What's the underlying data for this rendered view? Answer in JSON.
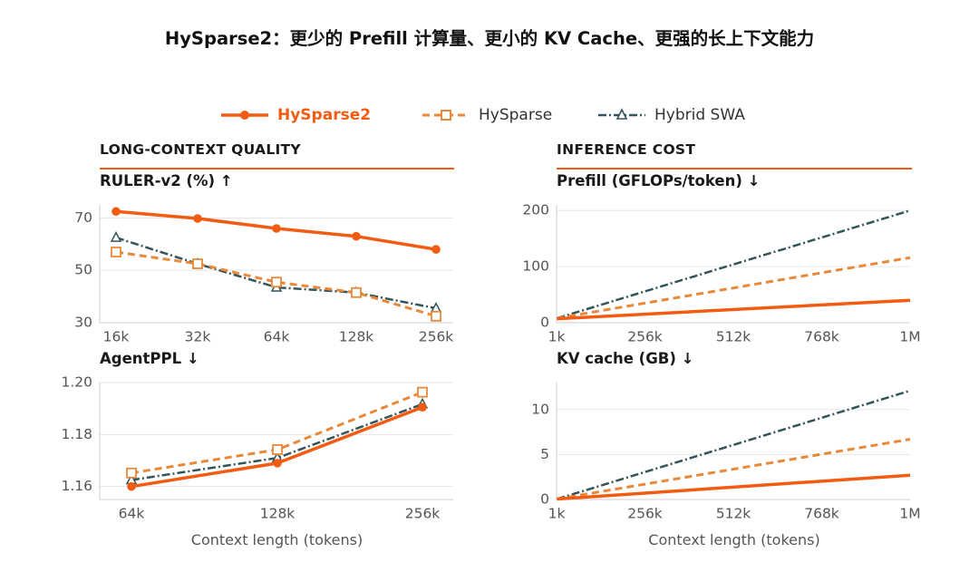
{
  "title": "HySparse2：更少的 Prefill 计算量、更小的 KV Cache、更强的长上下文能力",
  "legend": [
    {
      "name": "HySparse2",
      "color": "#f25c12",
      "style": "solid",
      "marker": "circle"
    },
    {
      "name": "HySparse",
      "color": "#e8893a",
      "style": "dashed",
      "marker": "square"
    },
    {
      "name": "Hybrid SWA",
      "color": "#33545a",
      "style": "dashdot",
      "marker": "triangle"
    }
  ],
  "sections": {
    "left": "LONG-CONTEXT QUALITY",
    "right": "INFERENCE COST"
  },
  "xlabel": "Context length (tokens)",
  "colors": {
    "accent": "#f25c12",
    "hysparse": "#e8893a",
    "swa": "#33545a",
    "rule": "#f25c12",
    "grid": "#e6e6e6"
  },
  "chart_data": [
    {
      "id": "ruler",
      "type": "line",
      "title": "RULER-v2 (%) ↑",
      "categories": [
        "16k",
        "32k",
        "64k",
        "128k",
        "256k"
      ],
      "ylim": [
        30,
        75
      ],
      "yticks": [
        30,
        50,
        70
      ],
      "grid": true,
      "series": [
        {
          "name": "HySparse2",
          "values": [
            72.5,
            69.8,
            66.0,
            63.0,
            58.0
          ]
        },
        {
          "name": "HySparse",
          "values": [
            57.0,
            52.5,
            45.5,
            41.5,
            32.5
          ]
        },
        {
          "name": "Hybrid SWA",
          "values": [
            62.5,
            52.5,
            43.5,
            41.5,
            35.5
          ]
        }
      ]
    },
    {
      "id": "agentppl",
      "type": "line",
      "title": "AgentPPL ↓",
      "categories": [
        "64k",
        "128k",
        "256k"
      ],
      "ylim": [
        1.155,
        1.2
      ],
      "yticks": [
        1.16,
        1.18,
        1.2
      ],
      "ytick_labels": [
        "1.16",
        "1.18",
        "1.20"
      ],
      "grid": true,
      "series": [
        {
          "name": "HySparse2",
          "values": [
            1.16,
            1.169,
            1.1905
          ]
        },
        {
          "name": "HySparse",
          "values": [
            1.1652,
            1.1742,
            1.1963
          ]
        },
        {
          "name": "Hybrid SWA",
          "values": [
            1.1625,
            1.171,
            1.1917
          ]
        }
      ]
    },
    {
      "id": "prefill",
      "type": "line",
      "title": "Prefill (GFLOPs/token) ↓",
      "x_ticks": [
        "1k",
        "256k",
        "512k",
        "768k",
        "1M"
      ],
      "xlim": [
        0,
        1024
      ],
      "ylim": [
        0,
        210
      ],
      "yticks": [
        0,
        100,
        200
      ],
      "grid": true,
      "series": [
        {
          "name": "HySparse2",
          "x": [
            1,
            1024
          ],
          "values": [
            7,
            40
          ]
        },
        {
          "name": "HySparse",
          "x": [
            1,
            1024
          ],
          "values": [
            8,
            116
          ]
        },
        {
          "name": "Hybrid SWA",
          "x": [
            1,
            1024
          ],
          "values": [
            8,
            200
          ]
        }
      ]
    },
    {
      "id": "kvcache",
      "type": "line",
      "title": "KV cache (GB) ↓",
      "x_ticks": [
        "1k",
        "256k",
        "512k",
        "768k",
        "1M"
      ],
      "xlim": [
        0,
        1024
      ],
      "ylim": [
        0,
        13
      ],
      "yticks": [
        0,
        5,
        10
      ],
      "grid": true,
      "series": [
        {
          "name": "HySparse2",
          "x": [
            1,
            1024
          ],
          "values": [
            0.05,
            2.7
          ]
        },
        {
          "name": "HySparse",
          "x": [
            1,
            1024
          ],
          "values": [
            0.05,
            6.7
          ]
        },
        {
          "name": "Hybrid SWA",
          "x": [
            1,
            1024
          ],
          "values": [
            0.05,
            12.1
          ]
        }
      ]
    }
  ]
}
